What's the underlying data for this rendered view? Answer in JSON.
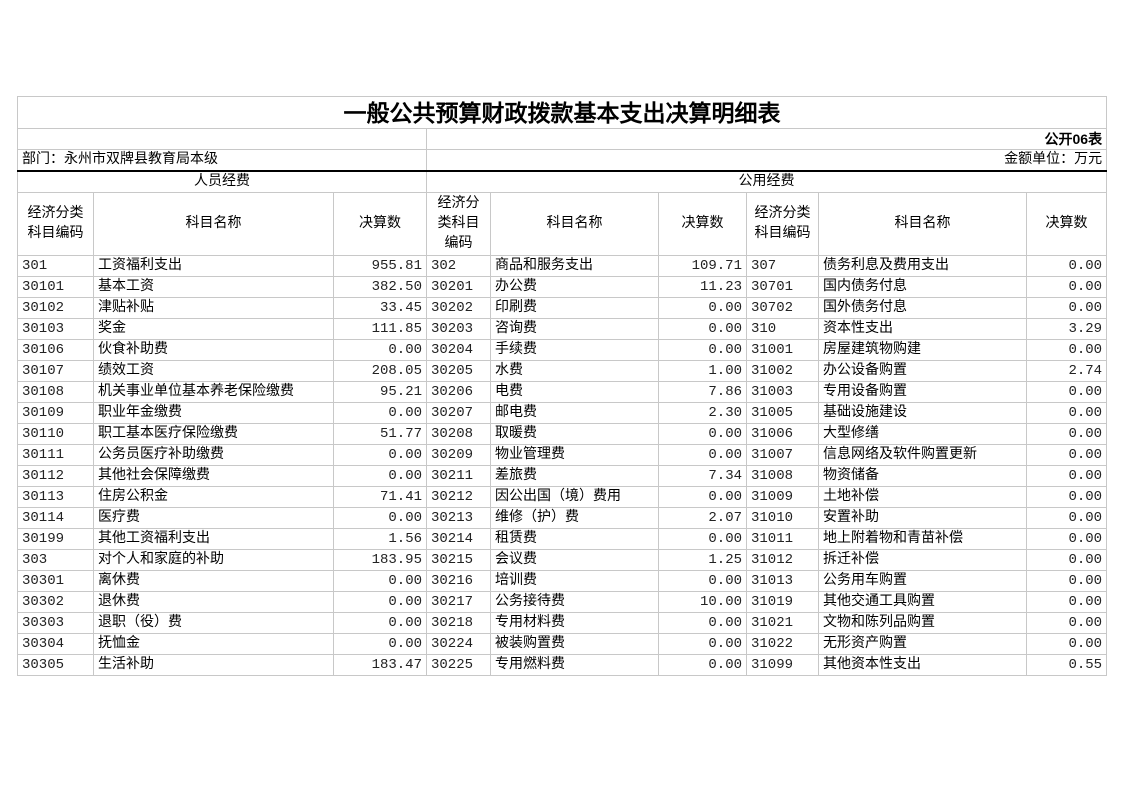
{
  "title": "一般公共预算财政拨款基本支出决算明细表",
  "table_no": "公开06表",
  "department": "部门：永州市双牌县教育局本级",
  "unit": "金额单位：万元",
  "sections": {
    "personnel": "人员经费",
    "public": "公用经费"
  },
  "headers": {
    "code": "经济分类科目编码",
    "name": "科目名称",
    "amount": "决算数"
  },
  "rows": [
    [
      "301",
      "工资福利支出",
      "955.81",
      "302",
      "商品和服务支出",
      "109.71",
      "307",
      "债务利息及费用支出",
      "0.00"
    ],
    [
      "30101",
      "基本工资",
      "382.50",
      "30201",
      "办公费",
      "11.23",
      "30701",
      "国内债务付息",
      "0.00"
    ],
    [
      "30102",
      "津贴补贴",
      "33.45",
      "30202",
      "印刷费",
      "0.00",
      "30702",
      "国外债务付息",
      "0.00"
    ],
    [
      "30103",
      "奖金",
      "111.85",
      "30203",
      "咨询费",
      "0.00",
      "310",
      "资本性支出",
      "3.29"
    ],
    [
      "30106",
      "伙食补助费",
      "0.00",
      "30204",
      "手续费",
      "0.00",
      "31001",
      "房屋建筑物购建",
      "0.00"
    ],
    [
      "30107",
      "绩效工资",
      "208.05",
      "30205",
      "水费",
      "1.00",
      "31002",
      "办公设备购置",
      "2.74"
    ],
    [
      "30108",
      "机关事业单位基本养老保险缴费",
      "95.21",
      "30206",
      "电费",
      "7.86",
      "31003",
      "专用设备购置",
      "0.00"
    ],
    [
      "30109",
      "职业年金缴费",
      "0.00",
      "30207",
      "邮电费",
      "2.30",
      "31005",
      "基础设施建设",
      "0.00"
    ],
    [
      "30110",
      "职工基本医疗保险缴费",
      "51.77",
      "30208",
      "取暖费",
      "0.00",
      "31006",
      "大型修缮",
      "0.00"
    ],
    [
      "30111",
      "公务员医疗补助缴费",
      "0.00",
      "30209",
      "物业管理费",
      "0.00",
      "31007",
      "信息网络及软件购置更新",
      "0.00"
    ],
    [
      "30112",
      "其他社会保障缴费",
      "0.00",
      "30211",
      "差旅费",
      "7.34",
      "31008",
      "物资储备",
      "0.00"
    ],
    [
      "30113",
      "住房公积金",
      "71.41",
      "30212",
      "因公出国（境）费用",
      "0.00",
      "31009",
      "土地补偿",
      "0.00"
    ],
    [
      "30114",
      "医疗费",
      "0.00",
      "30213",
      "维修（护）费",
      "2.07",
      "31010",
      "安置补助",
      "0.00"
    ],
    [
      "30199",
      "其他工资福利支出",
      "1.56",
      "30214",
      "租赁费",
      "0.00",
      "31011",
      "地上附着物和青苗补偿",
      "0.00"
    ],
    [
      "303",
      "对个人和家庭的补助",
      "183.95",
      "30215",
      "会议费",
      "1.25",
      "31012",
      "拆迁补偿",
      "0.00"
    ],
    [
      "30301",
      "离休费",
      "0.00",
      "30216",
      "培训费",
      "0.00",
      "31013",
      "公务用车购置",
      "0.00"
    ],
    [
      "30302",
      "退休费",
      "0.00",
      "30217",
      "公务接待费",
      "10.00",
      "31019",
      "其他交通工具购置",
      "0.00"
    ],
    [
      "30303",
      "退职（役）费",
      "0.00",
      "30218",
      "专用材料费",
      "0.00",
      "31021",
      "文物和陈列品购置",
      "0.00"
    ],
    [
      "30304",
      "抚恤金",
      "0.00",
      "30224",
      "被装购置费",
      "0.00",
      "31022",
      "无形资产购置",
      "0.00"
    ],
    [
      "30305",
      "生活补助",
      "183.47",
      "30225",
      "专用燃料费",
      "0.00",
      "31099",
      "其他资本性支出",
      "0.55"
    ]
  ]
}
